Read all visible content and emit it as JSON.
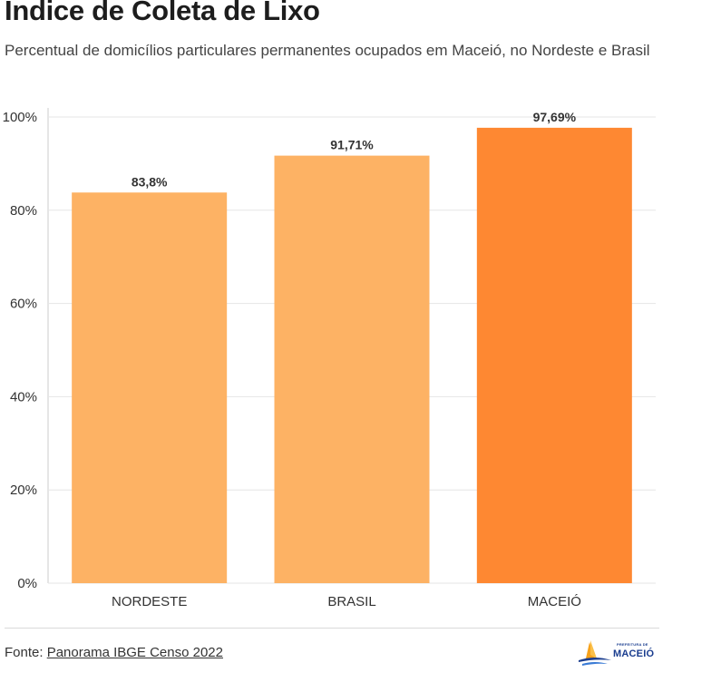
{
  "header": {
    "title": "Índice de Coleta de Lixo",
    "subtitle": "Percentual de domicílios particulares permanentes ocupados em Maceió, no Nordeste e Brasil"
  },
  "footer": {
    "source_prefix": "Fonte: ",
    "source_link": "Panorama IBGE Censo 2022",
    "logo_name": "MACEIÓ",
    "logo_tagline": "PREFEITURA DE"
  },
  "colors": {
    "bar_light": "#fdb264",
    "bar_highlight": "#fe8832",
    "grid": "#e6e6e6",
    "label": "#333333"
  },
  "chart_data": {
    "type": "bar",
    "categories": [
      "NORDESTE",
      "BRASIL",
      "MACEIÓ"
    ],
    "values": [
      83.8,
      91.71,
      97.69
    ],
    "value_labels": [
      "83,8%",
      "91,71%",
      "97,69%"
    ],
    "highlight_index": 2,
    "ylim": [
      0,
      100
    ],
    "yticks": [
      0,
      20,
      40,
      60,
      80,
      100
    ],
    "ytick_labels": [
      "0%",
      "20%",
      "40%",
      "60%",
      "80%",
      "100%"
    ],
    "title": "Índice de Coleta de Lixo",
    "xlabel": "",
    "ylabel": "",
    "grid": true
  }
}
